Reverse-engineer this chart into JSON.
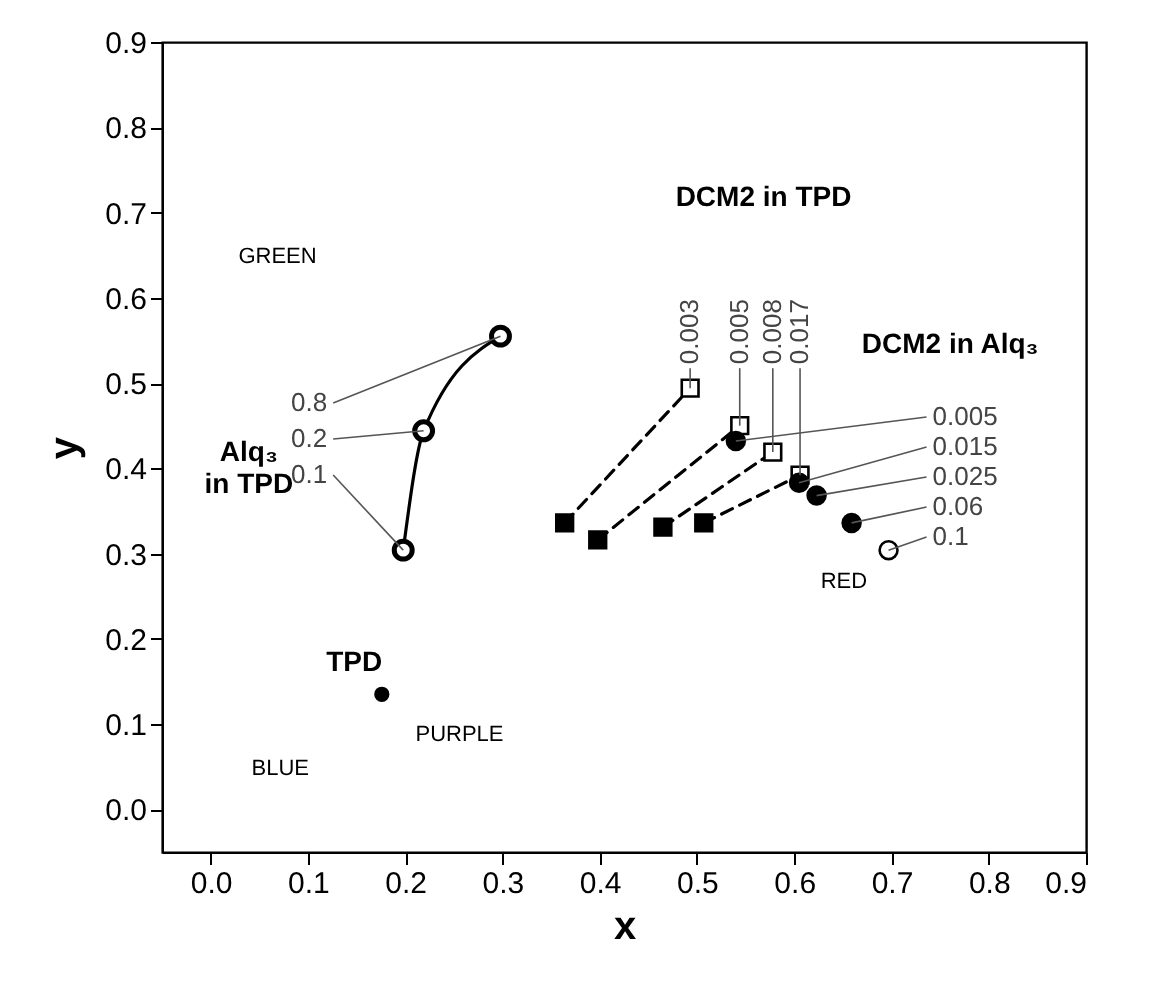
{
  "chart_data": {
    "type": "scatter",
    "xlabel": "x",
    "ylabel": "y",
    "xlim": [
      -0.05,
      0.9
    ],
    "ylim": [
      -0.05,
      0.9
    ],
    "xticks": [
      {
        "value": 0,
        "label": "0.0"
      },
      0.1,
      0.2,
      0.3,
      0.4,
      0.5,
      0.6,
      0.7,
      0.8,
      0.9
    ],
    "yticks": [
      {
        "value": 0,
        "label": "0.0"
      },
      0.1,
      0.2,
      0.3,
      0.4,
      0.5,
      0.6,
      0.7,
      0.8,
      0.9
    ],
    "series": [
      {
        "type": "scatter",
        "color": "#000000",
        "marker": "circle",
        "x": [
          0.176
        ],
        "values": [
          0.135
        ]
      },
      {
        "type": "line",
        "color": "#000000",
        "marker": "circle",
        "line_style": "solid",
        "x": [
          0.198,
          0.219,
          0.298
        ],
        "values": [
          0.304,
          0.444,
          0.555
        ]
      },
      {
        "type": "line",
        "color": "#000000",
        "marker": "none",
        "line_style": "dashed",
        "x": [
          0.364,
          0.493
        ],
        "values": [
          0.336,
          0.494
        ]
      },
      {
        "type": "line",
        "color": "#000000",
        "marker": "none",
        "line_style": "dashed",
        "x": [
          0.398,
          0.544
        ],
        "values": [
          0.316,
          0.45
        ]
      },
      {
        "type": "line",
        "color": "#000000",
        "marker": "none",
        "line_style": "dashed",
        "x": [
          0.465,
          0.578
        ],
        "values": [
          0.331,
          0.419
        ]
      },
      {
        "type": "line",
        "color": "#000000",
        "marker": "none",
        "line_style": "dashed",
        "x": [
          0.507,
          0.606
        ],
        "values": [
          0.336,
          0.392
        ]
      },
      {
        "type": "scatter",
        "color": "#000000",
        "marker": "square",
        "x": [
          0.364,
          0.398,
          0.465,
          0.507
        ],
        "values": [
          0.336,
          0.316,
          0.331,
          0.336
        ]
      },
      {
        "type": "scatter",
        "color": "#ffffff",
        "marker": "square",
        "x": [
          0.493,
          0.544,
          0.578,
          0.606
        ],
        "values": [
          0.494,
          0.45,
          0.419,
          0.392
        ]
      },
      {
        "type": "scatter",
        "colors": [
          "#000000",
          "#000000",
          "#000000",
          "#000000",
          "#ffffff"
        ],
        "marker": "circle",
        "x": [
          0.54,
          0.605,
          0.623,
          0.659,
          0.697
        ],
        "values": [
          0.432,
          0.383,
          0.368,
          0.336,
          0.304
        ]
      }
    ],
    "annotations": [
      "GREEN",
      "RED",
      "BLUE",
      "PURPLE",
      "TPD",
      "Alq₃ in TPD",
      "DCM2 in TPD",
      "DCM2 in Alq₃",
      {
        "text": "0.1",
        "x": 0.198,
        "y": 0.304
      },
      {
        "text": "0.2",
        "x": 0.219,
        "y": 0.444
      },
      {
        "text": "0.8",
        "x": 0.298,
        "y": 0.555
      },
      {
        "text": "0.003",
        "x": 0.493,
        "y": 0.494
      },
      {
        "text": "0.005",
        "x": 0.544,
        "y": 0.45
      },
      {
        "text": "0.008",
        "x": 0.578,
        "y": 0.419
      },
      {
        "text": "0.017",
        "x": 0.606,
        "y": 0.392
      },
      {
        "text": "0.005",
        "x": 0.54,
        "y": 0.432
      },
      {
        "text": "0.015",
        "x": 0.605,
        "y": 0.383
      },
      {
        "text": "0.025",
        "x": 0.623,
        "y": 0.368
      },
      {
        "text": "0.06",
        "x": 0.659,
        "y": 0.336
      },
      {
        "text": "0.1",
        "x": 0.697,
        "y": 0.304
      }
    ]
  }
}
